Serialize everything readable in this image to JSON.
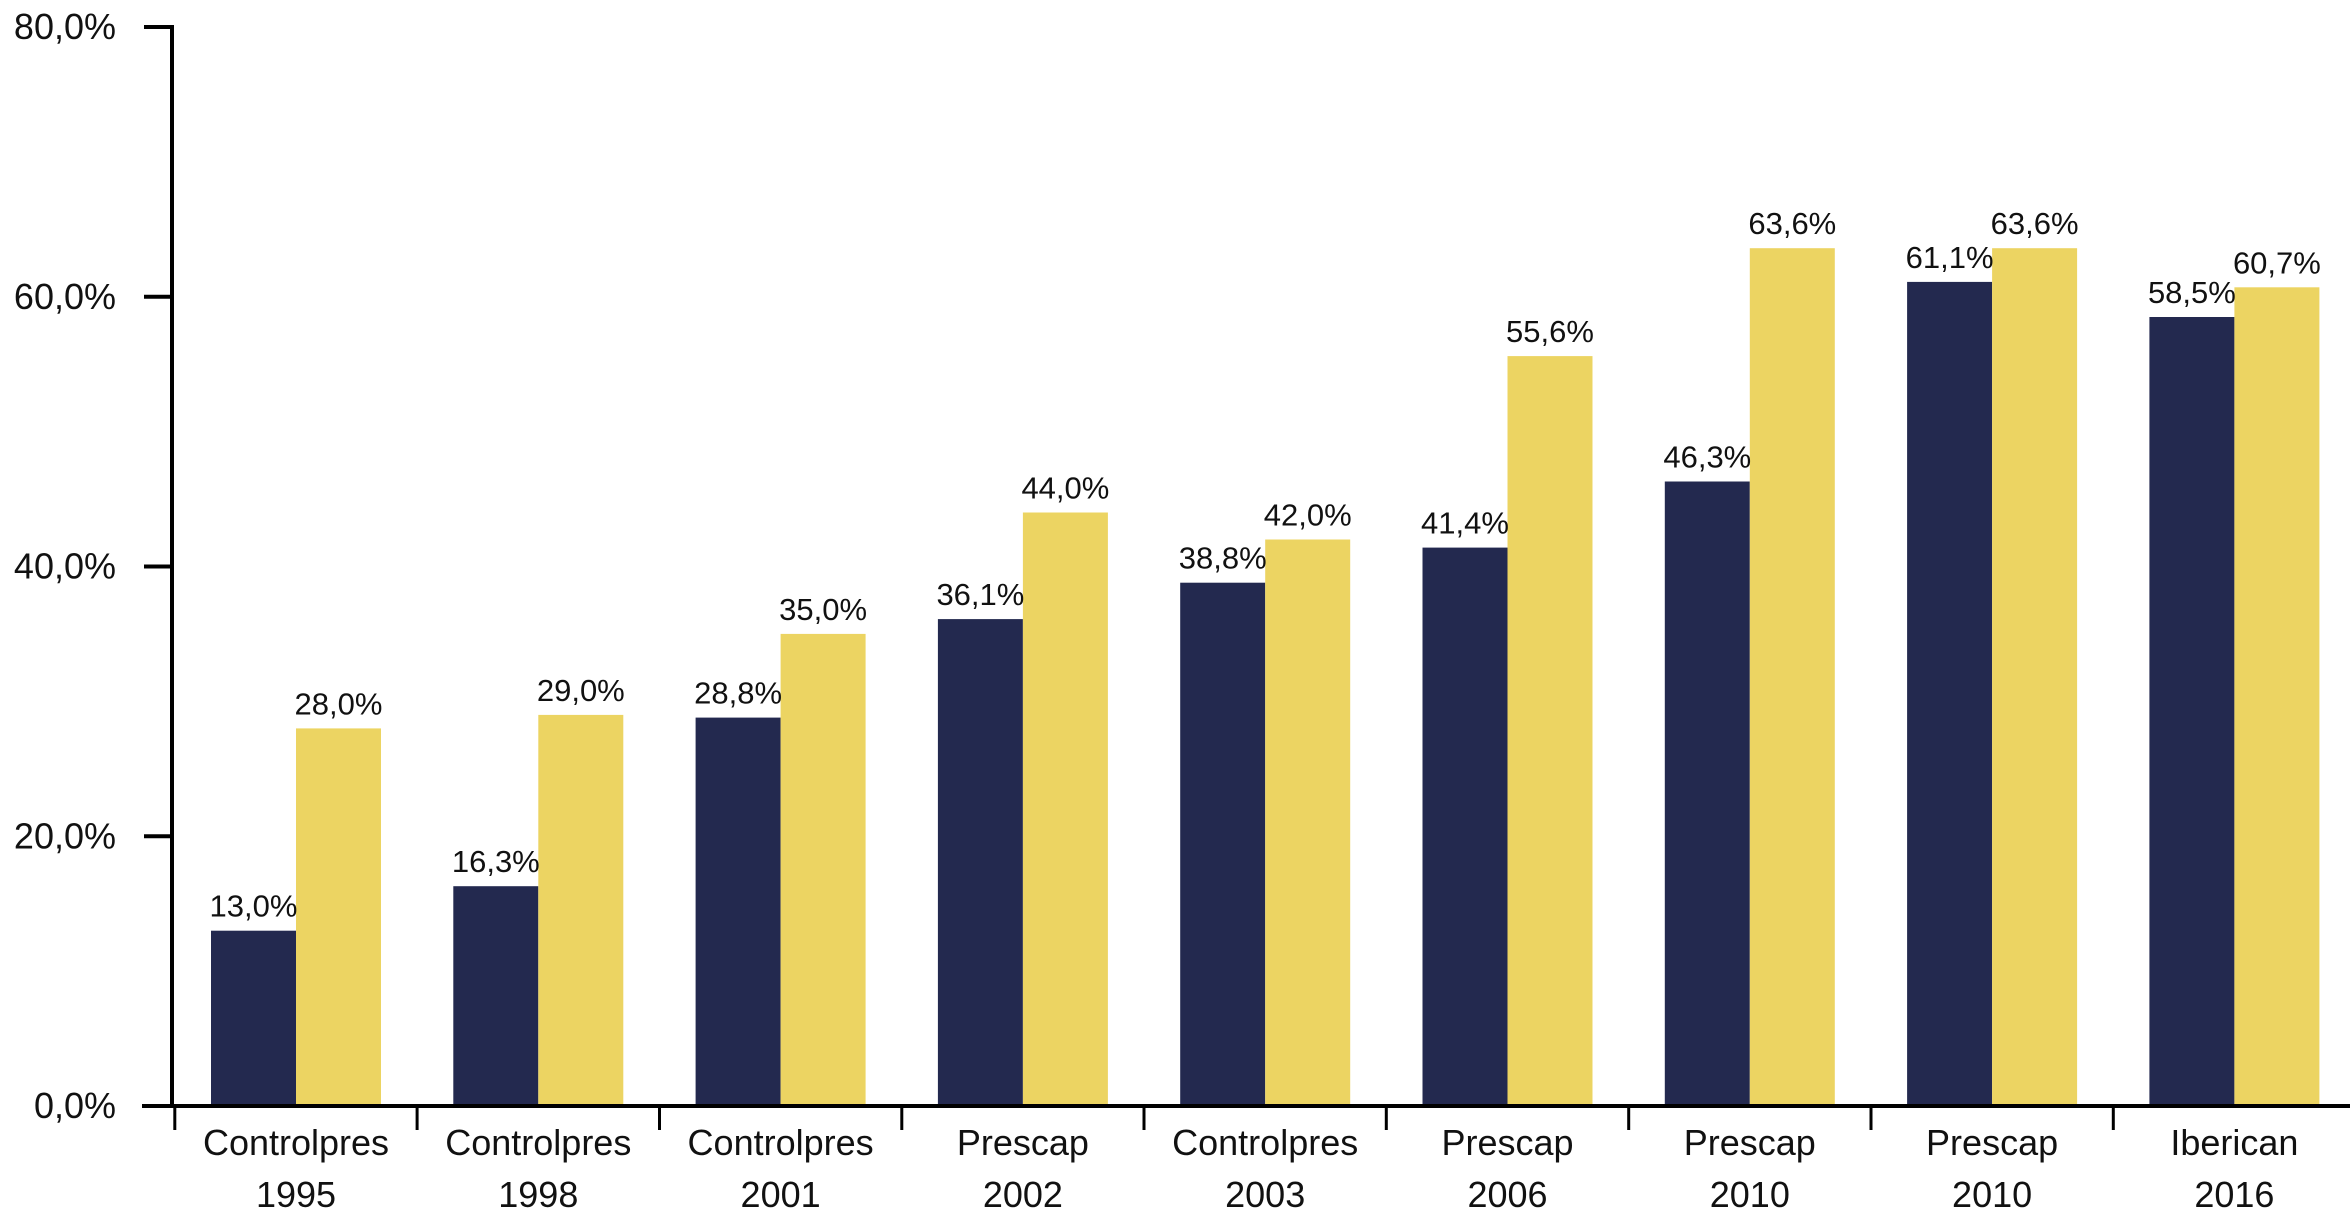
{
  "chart_data": {
    "type": "bar",
    "categories": [
      [
        "Controlpres",
        "1995"
      ],
      [
        "Controlpres",
        "1998"
      ],
      [
        "Controlpres",
        "2001"
      ],
      [
        "Prescap",
        "2002"
      ],
      [
        "Controlpres",
        "2003"
      ],
      [
        "Prescap",
        "2006"
      ],
      [
        "Prescap",
        "2010"
      ],
      [
        "Prescap",
        "2010"
      ],
      [
        "Iberican",
        "2016"
      ]
    ],
    "series": [
      {
        "color": "#23294f",
        "values": [
          13.0,
          16.3,
          28.8,
          36.1,
          38.8,
          41.4,
          46.3,
          61.1,
          58.5
        ],
        "labels": [
          "13,0%",
          "16,3%",
          "28,8%",
          "36,1%",
          "38,8%",
          "41,4%",
          "46,3%",
          "61,1%",
          "58,5%"
        ]
      },
      {
        "color": "#ecd462",
        "values": [
          28.0,
          29.0,
          35.0,
          44.0,
          42.0,
          55.6,
          63.6,
          63.6,
          60.7
        ],
        "labels": [
          "28,0%",
          "29,0%",
          "35,0%",
          "44,0%",
          "42,0%",
          "55,6%",
          "63,6%",
          "63,6%",
          "60,7%"
        ]
      }
    ],
    "yticks": [
      0,
      20,
      40,
      60,
      80
    ],
    "ytick_labels": [
      "0,0%",
      "20,0%",
      "40,0%",
      "60,0%",
      "80,0%"
    ],
    "ylim": [
      0,
      80
    ],
    "title": "",
    "xlabel": "",
    "ylabel": "",
    "grid": false,
    "legend": false
  }
}
